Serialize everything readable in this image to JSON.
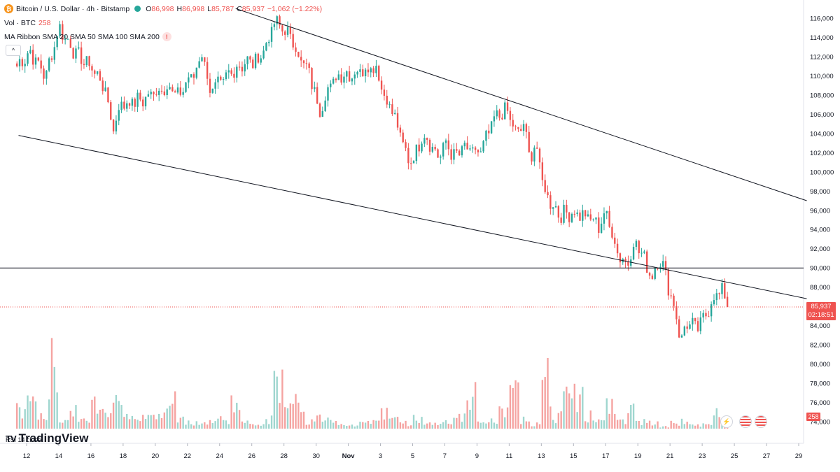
{
  "header": {
    "symbol_title": "Bitcoin / U.S. Dollar · 4h · Bitstamp",
    "ohlc": {
      "open_label": "O",
      "open": "86,998",
      "high_label": "H",
      "high": "86,998",
      "low_label": "L",
      "low": "85,787",
      "close_label": "C",
      "close": "85,937",
      "change": "−1,062 (−1.22%)"
    },
    "volume_label": "Vol · BTC",
    "volume_value": "258",
    "ma_ribbon": "MA Ribbon SMA 20 SMA 50 SMA 100 SMA 200",
    "collapse_glyph": "^",
    "btc_glyph": "₿",
    "warn_glyph": "!"
  },
  "price_tag": {
    "price": "85,937",
    "countdown": "02:18:51"
  },
  "volume_tag": "258",
  "logo_text": "TradingView",
  "logo_mark": "TV",
  "rsi_label": "RSI 14 close",
  "icons": [
    "lightning-icon",
    "us-flag-icon",
    "us-flag-icon"
  ],
  "colors": {
    "up": "#26a69a",
    "down": "#ef5350",
    "up_volume": "#9fd6cf",
    "down_volume": "#f5a3a1",
    "line": "#131722",
    "price_line": "#ef5350"
  },
  "chart_data": {
    "type": "candlestick",
    "y_axis": {
      "ticks": [
        116000,
        114000,
        112000,
        110000,
        108000,
        106000,
        104000,
        102000,
        100000,
        98000,
        96000,
        94000,
        92000,
        90000,
        88000,
        86000,
        84000,
        82000,
        80000,
        78000,
        76000,
        74000
      ],
      "tick_labels": [
        "116,000",
        "114,000",
        "112,000",
        "110,000",
        "108,000",
        "106,000",
        "104,000",
        "102,000",
        "100,000",
        "98,000",
        "96,000",
        "94,000",
        "92,000",
        "90,000",
        "88,000",
        "86,000",
        "84,000",
        "82,000",
        "80,000",
        "78,000",
        "76,000",
        "74,000"
      ],
      "range": [
        73500,
        117000
      ]
    },
    "x_axis": {
      "range_days": [
        11.5,
        29.5
      ],
      "ticks": [
        {
          "day": 12,
          "label": "12"
        },
        {
          "day": 14,
          "label": "14"
        },
        {
          "day": 16,
          "label": "16"
        },
        {
          "day": 18,
          "label": "18"
        },
        {
          "day": 20,
          "label": "20"
        },
        {
          "day": 22,
          "label": "22"
        },
        {
          "day": 24,
          "label": "24"
        },
        {
          "day": 26,
          "label": "26"
        },
        {
          "day": 28,
          "label": "28"
        },
        {
          "day": 30,
          "label": "30"
        },
        {
          "day": 32,
          "label": "Nov"
        },
        {
          "day": 34,
          "label": "3"
        },
        {
          "day": 36,
          "label": "5"
        },
        {
          "day": 38,
          "label": "7"
        },
        {
          "day": 40,
          "label": "9"
        },
        {
          "day": 42,
          "label": "11"
        },
        {
          "day": 44,
          "label": "13"
        },
        {
          "day": 46,
          "label": "15"
        },
        {
          "day": 48,
          "label": "17"
        },
        {
          "day": 50,
          "label": "19"
        },
        {
          "day": 52,
          "label": "21"
        },
        {
          "day": 54,
          "label": "23"
        },
        {
          "day": 56,
          "label": "25"
        },
        {
          "day": 58,
          "label": "27"
        },
        {
          "day": 60,
          "label": "29"
        }
      ]
    },
    "keypoints": [
      [
        11.4,
        111000
      ],
      [
        12.2,
        112500
      ],
      [
        13.2,
        110000
      ],
      [
        14.0,
        115000
      ],
      [
        14.6,
        113500
      ],
      [
        15.2,
        112000
      ],
      [
        16.0,
        111000
      ],
      [
        16.8,
        109000
      ],
      [
        17.4,
        104500
      ],
      [
        17.8,
        107000
      ],
      [
        19.2,
        107500
      ],
      [
        20.2,
        108500
      ],
      [
        20.8,
        109000
      ],
      [
        21.4,
        107800
      ],
      [
        22.0,
        109500
      ],
      [
        22.5,
        110300
      ],
      [
        22.9,
        112600
      ],
      [
        23.4,
        108500
      ],
      [
        24.0,
        109000
      ],
      [
        24.6,
        110200
      ],
      [
        25.0,
        110800
      ],
      [
        25.6,
        111400
      ],
      [
        26.3,
        111500
      ],
      [
        26.9,
        113200
      ],
      [
        27.4,
        115500
      ],
      [
        27.9,
        115000
      ],
      [
        28.5,
        113800
      ],
      [
        29.1,
        111500
      ],
      [
        29.6,
        110200
      ],
      [
        30.2,
        106400
      ],
      [
        30.8,
        108800
      ],
      [
        31.5,
        110300
      ],
      [
        32.0,
        110100
      ],
      [
        32.7,
        110500
      ],
      [
        33.3,
        111000
      ],
      [
        33.8,
        110800
      ],
      [
        34.2,
        108000
      ],
      [
        34.7,
        106500
      ],
      [
        35.2,
        104000
      ],
      [
        35.7,
        101200
      ],
      [
        36.2,
        101800
      ],
      [
        36.6,
        104000
      ],
      [
        37.1,
        103000
      ],
      [
        37.6,
        101500
      ],
      [
        38.1,
        103000
      ],
      [
        38.6,
        101500
      ],
      [
        39.2,
        102500
      ],
      [
        39.7,
        102000
      ],
      [
        40.3,
        102200
      ],
      [
        40.8,
        104500
      ],
      [
        41.3,
        106000
      ],
      [
        41.9,
        106300
      ],
      [
        42.4,
        104000
      ],
      [
        42.9,
        104800
      ],
      [
        43.3,
        101500
      ],
      [
        43.7,
        102800
      ],
      [
        44.1,
        98500
      ],
      [
        44.6,
        96800
      ],
      [
        45.2,
        95500
      ],
      [
        45.8,
        95800
      ],
      [
        46.4,
        95600
      ],
      [
        47.0,
        95200
      ],
      [
        47.6,
        94400
      ],
      [
        48.0,
        95800
      ],
      [
        48.4,
        93600
      ],
      [
        48.8,
        91400
      ],
      [
        49.3,
        90300
      ],
      [
        49.8,
        92800
      ],
      [
        50.3,
        91200
      ],
      [
        50.9,
        89000
      ],
      [
        51.3,
        91200
      ],
      [
        51.7,
        89500
      ],
      [
        52.1,
        86800
      ],
      [
        52.4,
        85000
      ],
      [
        52.7,
        82200
      ],
      [
        53.0,
        84400
      ],
      [
        53.6,
        83700
      ],
      [
        54.1,
        84600
      ],
      [
        54.5,
        86300
      ],
      [
        54.9,
        87300
      ],
      [
        55.3,
        87500
      ],
      [
        55.6,
        85937
      ]
    ],
    "volume_units": [
      10,
      18,
      6,
      34,
      5,
      9,
      4,
      15,
      11,
      19,
      6,
      10,
      6,
      7,
      14,
      5,
      4,
      3,
      4,
      6,
      14,
      3,
      3,
      5,
      29,
      10,
      13,
      4,
      6,
      6,
      3,
      2,
      3,
      6,
      9,
      5,
      3,
      6,
      3,
      3,
      5,
      6,
      18,
      3,
      4,
      9,
      18,
      6,
      3,
      27,
      7,
      16,
      18,
      7,
      5,
      12,
      4,
      10,
      4,
      3,
      1,
      3,
      4,
      2,
      2,
      8,
      4,
      18,
      4,
      7,
      6,
      13,
      9,
      22,
      6,
      13,
      7,
      5,
      16,
      13,
      8
    ],
    "channel_upper": [
      [
        25.0,
        117000
      ],
      [
        60.5,
        97000
      ]
    ],
    "channel_lower": [
      [
        11.5,
        103800
      ],
      [
        60.5,
        86800
      ]
    ],
    "horizontal_line": 90000,
    "last_price": 85937
  }
}
